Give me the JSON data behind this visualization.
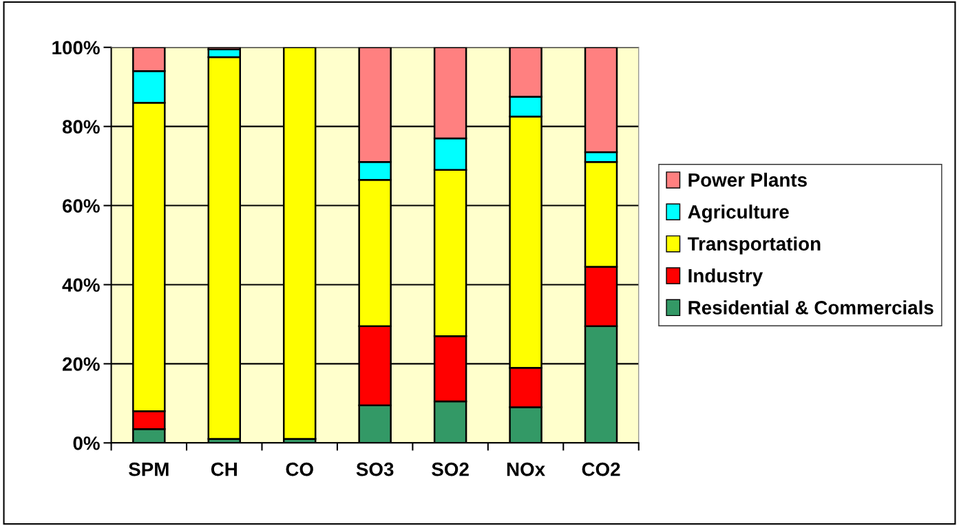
{
  "chart_data": {
    "type": "bar",
    "stacked": true,
    "categories": [
      "SPM",
      "CH",
      "CO",
      "SO3",
      "SO2",
      "NOx",
      "CO2"
    ],
    "series": [
      {
        "name": "Residential & Commercials",
        "color": "#339966",
        "values": [
          3.5,
          1,
          1,
          9.5,
          10.5,
          9,
          29.5
        ]
      },
      {
        "name": "Industry",
        "color": "#ff0000",
        "values": [
          4.5,
          0,
          0,
          20,
          16.5,
          10,
          15
        ]
      },
      {
        "name": "Transportation",
        "color": "#ffff00",
        "values": [
          78,
          96.5,
          99,
          37,
          42,
          63.5,
          26.5
        ]
      },
      {
        "name": "Agriculture",
        "color": "#00ffff",
        "values": [
          8,
          2,
          0,
          4.5,
          8,
          5,
          2.5
        ]
      },
      {
        "name": "Power Plants",
        "color": "#ff8080",
        "values": [
          6,
          0.5,
          0,
          29,
          23,
          12.5,
          26.5
        ]
      }
    ],
    "ylim": [
      0,
      100
    ],
    "yticks": [
      {
        "value": 0,
        "label": "0%"
      },
      {
        "value": 20,
        "label": "20%"
      },
      {
        "value": 40,
        "label": "40%"
      },
      {
        "value": 60,
        "label": "60%"
      },
      {
        "value": 80,
        "label": "80%"
      },
      {
        "value": 100,
        "label": "100%"
      }
    ],
    "grid": "y",
    "legend": "right"
  }
}
